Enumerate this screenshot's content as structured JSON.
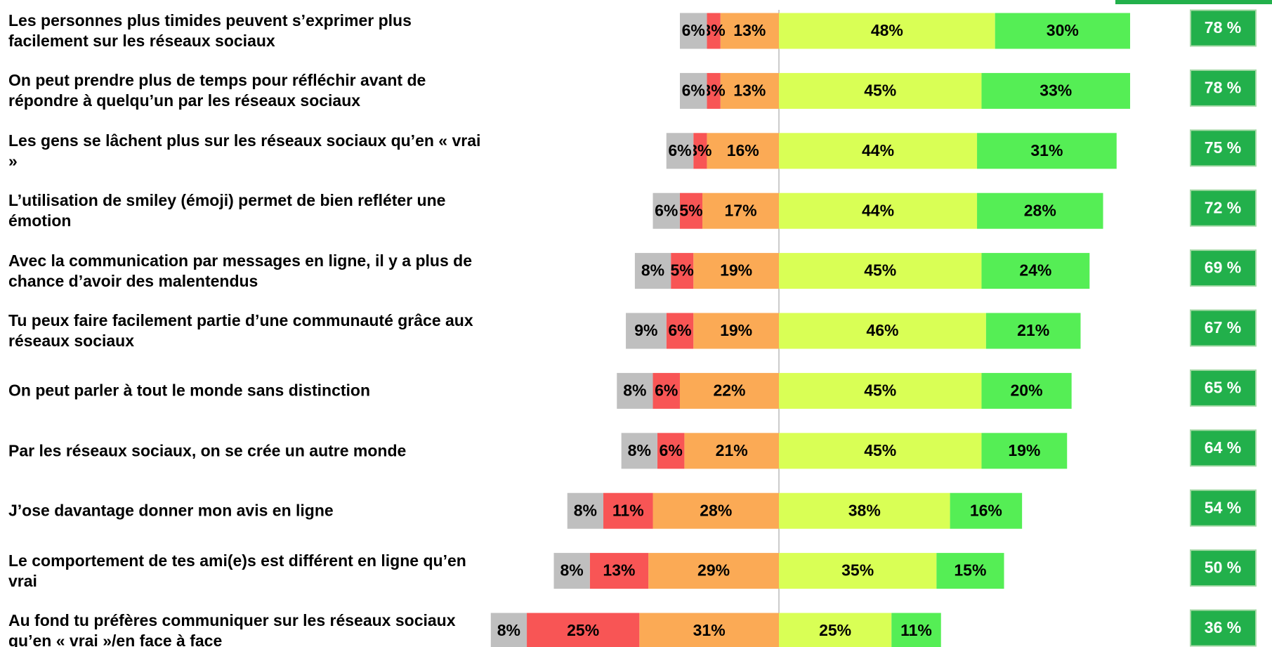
{
  "chart_data": {
    "type": "bar",
    "stacked": true,
    "diverging": true,
    "categories": [
      "Les personnes plus timides peuvent s’exprimer plus facilement sur les réseaux sociaux",
      "On peut prendre plus de temps pour réfléchir avant de répondre à quelqu’un par les réseaux sociaux",
      "Les gens se lâchent plus sur les réseaux sociaux qu’en « vrai »",
      "L’utilisation de smiley (émoji) permet de bien refléter une émotion",
      "Avec la communication par messages en ligne, il y a plus de chance d’avoir des malentendus",
      "Tu peux faire facilement partie d’une communauté grâce aux réseaux sociaux",
      "On peut parler à tout le monde sans distinction",
      "Par les réseaux sociaux, on se crée un autre monde",
      "J’ose davantage donner mon avis en ligne",
      "Le comportement de tes ami(e)s est différent en ligne qu’en vrai",
      "Au fond tu préfères communiquer sur les réseaux sociaux qu’en « vrai »/en face à face"
    ],
    "series": [
      {
        "color": "#bfbfbf",
        "side": "left",
        "values": [
          6,
          6,
          6,
          6,
          8,
          9,
          8,
          8,
          8,
          8,
          8
        ],
        "value_labels": [
          "6%",
          "6%",
          "6%",
          "6%",
          "8%",
          "9%",
          "8%",
          "8%",
          "8%",
          "8%",
          "8%"
        ]
      },
      {
        "color": "#f85555",
        "side": "left",
        "values": [
          3,
          3,
          3,
          5,
          5,
          6,
          6,
          6,
          11,
          13,
          25
        ],
        "value_labels": [
          "3%",
          "3%",
          "3%",
          "5%",
          "5%",
          "6%",
          "6%",
          "6%",
          "11%",
          "13%",
          "25%"
        ]
      },
      {
        "color": "#fbaa55",
        "side": "left",
        "values": [
          13,
          13,
          16,
          17,
          19,
          19,
          22,
          21,
          28,
          29,
          31
        ],
        "value_labels": [
          "13%",
          "13%",
          "16%",
          "17%",
          "19%",
          "19%",
          "22%",
          "21%",
          "28%",
          "29%",
          "31%"
        ]
      },
      {
        "color": "#d9ff55",
        "side": "right",
        "values": [
          48,
          45,
          44,
          44,
          45,
          46,
          45,
          45,
          38,
          35,
          25
        ],
        "value_labels": [
          "48%",
          "45%",
          "44%",
          "44%",
          "45%",
          "46%",
          "45%",
          "45%",
          "38%",
          "35%",
          "25%"
        ]
      },
      {
        "color": "#55ee55",
        "side": "right",
        "values": [
          30,
          33,
          31,
          28,
          24,
          21,
          20,
          19,
          16,
          15,
          11
        ],
        "value_labels": [
          "30%",
          "33%",
          "31%",
          "28%",
          "24%",
          "21%",
          "20%",
          "19%",
          "16%",
          "15%",
          "11%"
        ]
      }
    ],
    "totals": {
      "color": "#22b04b",
      "values": [
        78,
        78,
        75,
        72,
        69,
        67,
        65,
        64,
        54,
        50,
        36
      ],
      "value_labels": [
        "78 %",
        "78 %",
        "75 %",
        "72 %",
        "69 %",
        "67 %",
        "65 %",
        "64 %",
        "54 %",
        "50 %",
        "36 %"
      ]
    }
  }
}
